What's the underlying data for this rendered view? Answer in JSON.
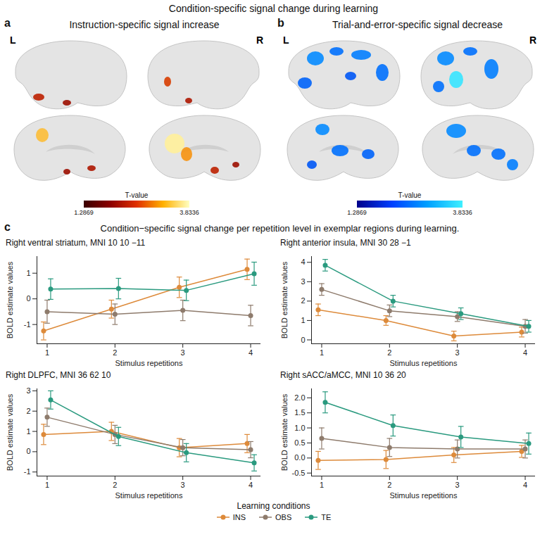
{
  "title": "Condition-specific signal change during learning",
  "brain_panels": [
    {
      "letter": "a",
      "title": "Instruction-specific signal increase",
      "hemisphere_labels": [
        "L",
        "R"
      ],
      "colorbar": {
        "label": "T-value",
        "range": [
          1.2869,
          3.8336
        ],
        "ticks": [
          1.2869,
          3.8336
        ],
        "colors": [
          "#3a0000",
          "#8b0000",
          "#e03000",
          "#ffb000",
          "#ffffc0"
        ]
      }
    },
    {
      "letter": "b",
      "title": "Trial-and-error-specific signal decrease",
      "hemisphere_labels": [
        "L",
        "R"
      ],
      "colorbar": {
        "label": "T-value",
        "range": [
          1.2869,
          3.8336
        ],
        "ticks": [
          1.2869,
          3.8336
        ],
        "colors": [
          "#00008b",
          "#0040ff",
          "#00a0ff",
          "#40f0ff"
        ]
      }
    }
  ],
  "chart_panel": {
    "letter": "c",
    "title": "Condition−specific signal change per repetition level in exemplar regions during learning.",
    "legend_title": "Learning conditions",
    "legend": "bottom"
  },
  "chart_data": [
    {
      "type": "line",
      "title": "Right ventral striatum, MNI 10 10 −11",
      "x_label": "Stimulus repetitions",
      "y_label": "BOLD estimate values",
      "x": [
        1,
        2,
        3,
        4
      ],
      "xlim": [
        0.85,
        4.15
      ],
      "xticks": [
        1,
        2,
        3,
        4
      ],
      "ylim": [
        -1.75,
        1.65
      ],
      "yticks": [
        -1,
        0,
        1
      ],
      "grid": false,
      "marker": "circle",
      "series": [
        {
          "name": "INS",
          "color": "#dd8a3a",
          "values": [
            -1.25,
            -0.4,
            0.45,
            1.15
          ],
          "errors": [
            0.35,
            0.35,
            0.4,
            0.4
          ]
        },
        {
          "name": "OBS",
          "color": "#8e7b6c",
          "values": [
            -0.5,
            -0.6,
            -0.45,
            -0.65
          ],
          "errors": [
            0.45,
            0.4,
            0.4,
            0.4
          ]
        },
        {
          "name": "TE",
          "color": "#2a9a7f",
          "values": [
            0.38,
            0.4,
            0.33,
            0.98
          ],
          "errors": [
            0.4,
            0.4,
            0.4,
            0.45
          ]
        }
      ]
    },
    {
      "type": "line",
      "title": "Right anterior insula, MNI 30 28 −1",
      "x_label": "Stimulus repetitions",
      "y_label": "BOLD estimate values",
      "x": [
        1,
        2,
        3,
        4
      ],
      "xlim": [
        0.85,
        4.15
      ],
      "xticks": [
        1,
        2,
        3,
        4
      ],
      "ylim": [
        -0.2,
        4.3
      ],
      "yticks": [
        0,
        1,
        2,
        3,
        4
      ],
      "grid": false,
      "marker": "circle",
      "series": [
        {
          "name": "INS",
          "color": "#dd8a3a",
          "values": [
            1.55,
            1.0,
            0.2,
            0.4
          ],
          "errors": [
            0.3,
            0.25,
            0.25,
            0.25
          ]
        },
        {
          "name": "OBS",
          "color": "#8e7b6c",
          "values": [
            2.6,
            1.5,
            1.2,
            0.7
          ],
          "errors": [
            0.3,
            0.3,
            0.25,
            0.35
          ]
        },
        {
          "name": "TE",
          "color": "#2a9a7f",
          "values": [
            3.85,
            2.0,
            1.35,
            0.7
          ],
          "errors": [
            0.3,
            0.3,
            0.3,
            0.3
          ]
        }
      ]
    },
    {
      "type": "line",
      "title": "Right DLPFC, MNI 36 62 10",
      "x_label": "Stimulus repetitions",
      "y_label": "BOLD estimate values",
      "x": [
        1,
        2,
        3,
        4
      ],
      "xlim": [
        0.85,
        4.15
      ],
      "xticks": [
        1,
        2,
        3,
        4
      ],
      "ylim": [
        -1.2,
        3.1
      ],
      "yticks": [
        -1,
        0,
        1,
        2,
        3
      ],
      "grid": false,
      "marker": "circle",
      "series": [
        {
          "name": "INS",
          "color": "#dd8a3a",
          "values": [
            0.85,
            1.0,
            0.2,
            0.4
          ],
          "errors": [
            0.5,
            0.45,
            0.45,
            0.45
          ]
        },
        {
          "name": "OBS",
          "color": "#8e7b6c",
          "values": [
            1.7,
            0.85,
            0.2,
            0.1
          ],
          "errors": [
            0.45,
            0.45,
            0.4,
            0.4
          ]
        },
        {
          "name": "TE",
          "color": "#2a9a7f",
          "values": [
            2.55,
            0.75,
            -0.05,
            -0.55
          ],
          "errors": [
            0.45,
            0.45,
            0.45,
            0.4
          ]
        }
      ]
    },
    {
      "type": "line",
      "title": "Right sACC/aMCC, MNI 10 36 20",
      "x_label": "Stimulus repetitions",
      "y_label": "BOLD estimate values",
      "x": [
        1,
        2,
        3,
        4
      ],
      "xlim": [
        0.85,
        4.15
      ],
      "xticks": [
        1,
        2,
        3,
        4
      ],
      "ylim": [
        -0.6,
        2.3
      ],
      "yticks": [
        -0.5,
        {
          "value": 0,
          "label": "0.0"
        },
        0.5,
        {
          "value": 1,
          "label": "1.0"
        },
        1.5,
        {
          "value": 2,
          "label": "2.0"
        }
      ],
      "grid": false,
      "marker": "circle",
      "series": [
        {
          "name": "INS",
          "color": "#dd8a3a",
          "values": [
            -0.08,
            -0.05,
            0.1,
            0.22
          ],
          "errors": [
            0.3,
            0.3,
            0.25,
            0.2
          ]
        },
        {
          "name": "OBS",
          "color": "#8e7b6c",
          "values": [
            0.65,
            0.35,
            0.3,
            0.3
          ],
          "errors": [
            0.35,
            0.3,
            0.3,
            0.3
          ]
        },
        {
          "name": "TE",
          "color": "#2a9a7f",
          "values": [
            1.85,
            1.08,
            0.7,
            0.48
          ],
          "errors": [
            0.35,
            0.35,
            0.35,
            0.35
          ]
        }
      ]
    }
  ]
}
